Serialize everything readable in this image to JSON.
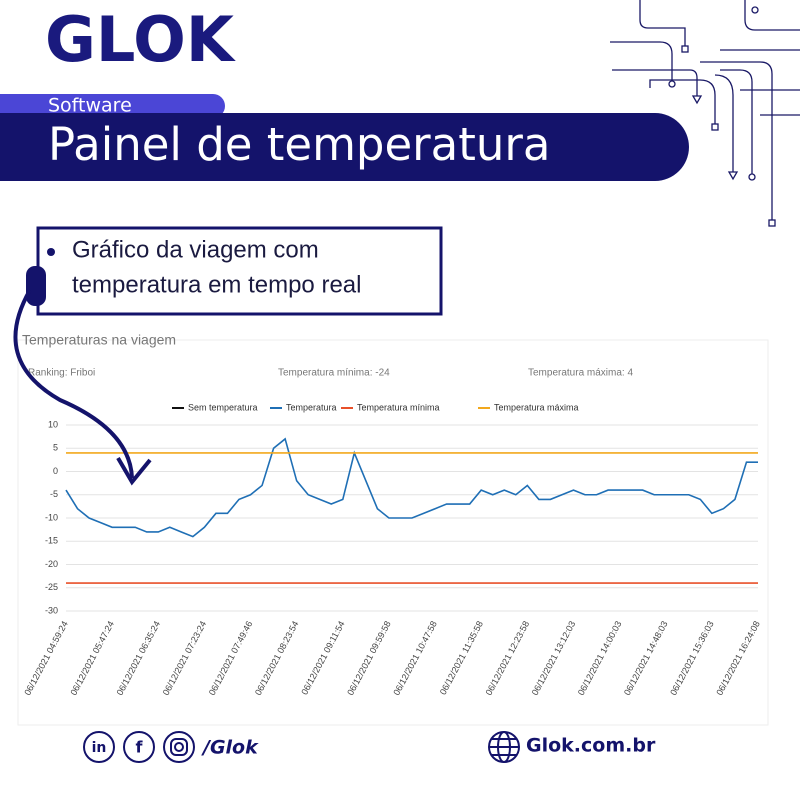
{
  "header": {
    "logo": "GLOK",
    "category": "Software",
    "title": "Painel de temperatura"
  },
  "callout": {
    "lines": [
      "Gráfico da viagem com",
      "temperatura em tempo real"
    ]
  },
  "footer": {
    "icons": [
      "in",
      "f"
    ],
    "social": "/Glok",
    "website": "Glok.com.br"
  },
  "chart_data": {
    "type": "line",
    "title": "Temperaturas na viagem",
    "info": [
      "Ranking: Friboi",
      "Temperatura mínima: -24",
      "Temperatura máxima: 4"
    ],
    "categories": [
      "06/12/2021 04:59:24",
      null,
      null,
      null,
      "06/12/2021 05:47:24",
      null,
      null,
      null,
      "06/12/2021 06:35:24",
      null,
      null,
      null,
      "06/12/2021 07:23:24",
      null,
      null,
      null,
      "06/12/2021 07:49:46",
      null,
      null,
      null,
      "06/12/2021 08:23:54",
      null,
      null,
      null,
      "06/12/2021 09:11:54",
      null,
      null,
      null,
      "06/12/2021 09:59:58",
      null,
      null,
      null,
      "06/12/2021 10:47:58",
      null,
      null,
      null,
      "06/12/2021 11:35:58",
      null,
      null,
      null,
      "06/12/2021 12:23:58",
      null,
      null,
      null,
      "06/12/2021 13:12:03",
      null,
      null,
      null,
      "06/12/2021 14:00:03",
      null,
      null,
      null,
      "06/12/2021 14:48:03",
      null,
      null,
      null,
      "06/12/2021 15:36:03",
      null,
      null,
      null,
      "06/12/2021 16:24:08"
    ],
    "series": [
      {
        "name": "Sem temperatura",
        "color": "#111111"
      },
      {
        "name": "Temperatura",
        "color": "#1f6fb5",
        "values": [
          -4,
          -8,
          -10,
          -11,
          -12,
          -12,
          -12,
          -13,
          -13,
          -12,
          -13,
          -14,
          -12,
          -9,
          -9,
          -6,
          -5,
          -3,
          5,
          7,
          -2,
          -5,
          -6,
          -7,
          -6,
          4,
          -2,
          -8,
          -10,
          -10,
          -10,
          -9,
          -8,
          -7,
          -7,
          -7,
          -4,
          -5,
          -4,
          -5,
          -3,
          -6,
          -6,
          -5,
          -4,
          -5,
          -5,
          -4,
          -4,
          -4,
          -4,
          -5,
          -5,
          -5,
          -5,
          -6,
          -9,
          -8,
          -6,
          2,
          2
        ]
      },
      {
        "name": "Temperatura mínima",
        "color": "#e8502a",
        "values": [
          -24,
          -24,
          -24,
          -24,
          -24,
          -24,
          -24,
          -24,
          -24,
          -24,
          -24,
          -24,
          -24,
          -24,
          -24,
          -24,
          -24,
          -24,
          -24,
          -24,
          -24,
          -24,
          -24,
          -24,
          -24,
          -24,
          -24,
          -24,
          -24,
          -24,
          -24,
          -24,
          -24,
          -24,
          -24,
          -24,
          -24,
          -24,
          -24,
          -24,
          -24,
          -24,
          -24,
          -24,
          -24,
          -24,
          -24,
          -24,
          -24,
          -24,
          -24,
          -24,
          -24,
          -24,
          -24,
          -24,
          -24,
          -24,
          -24,
          -24,
          -24
        ]
      },
      {
        "name": "Temperatura máxima",
        "color": "#f2a81d",
        "values": [
          4,
          4,
          4,
          4,
          4,
          4,
          4,
          4,
          4,
          4,
          4,
          4,
          4,
          4,
          4,
          4,
          4,
          4,
          4,
          4,
          4,
          4,
          4,
          4,
          4,
          4,
          4,
          4,
          4,
          4,
          4,
          4,
          4,
          4,
          4,
          4,
          4,
          4,
          4,
          4,
          4,
          4,
          4,
          4,
          4,
          4,
          4,
          4,
          4,
          4,
          4,
          4,
          4,
          4,
          4,
          4,
          4,
          4,
          4,
          4,
          4
        ]
      }
    ],
    "ylim": [
      -30,
      10
    ],
    "yticks": [
      -30,
      -25,
      -20,
      -15,
      -10,
      -5,
      0,
      5,
      10
    ],
    "grid": true
  }
}
